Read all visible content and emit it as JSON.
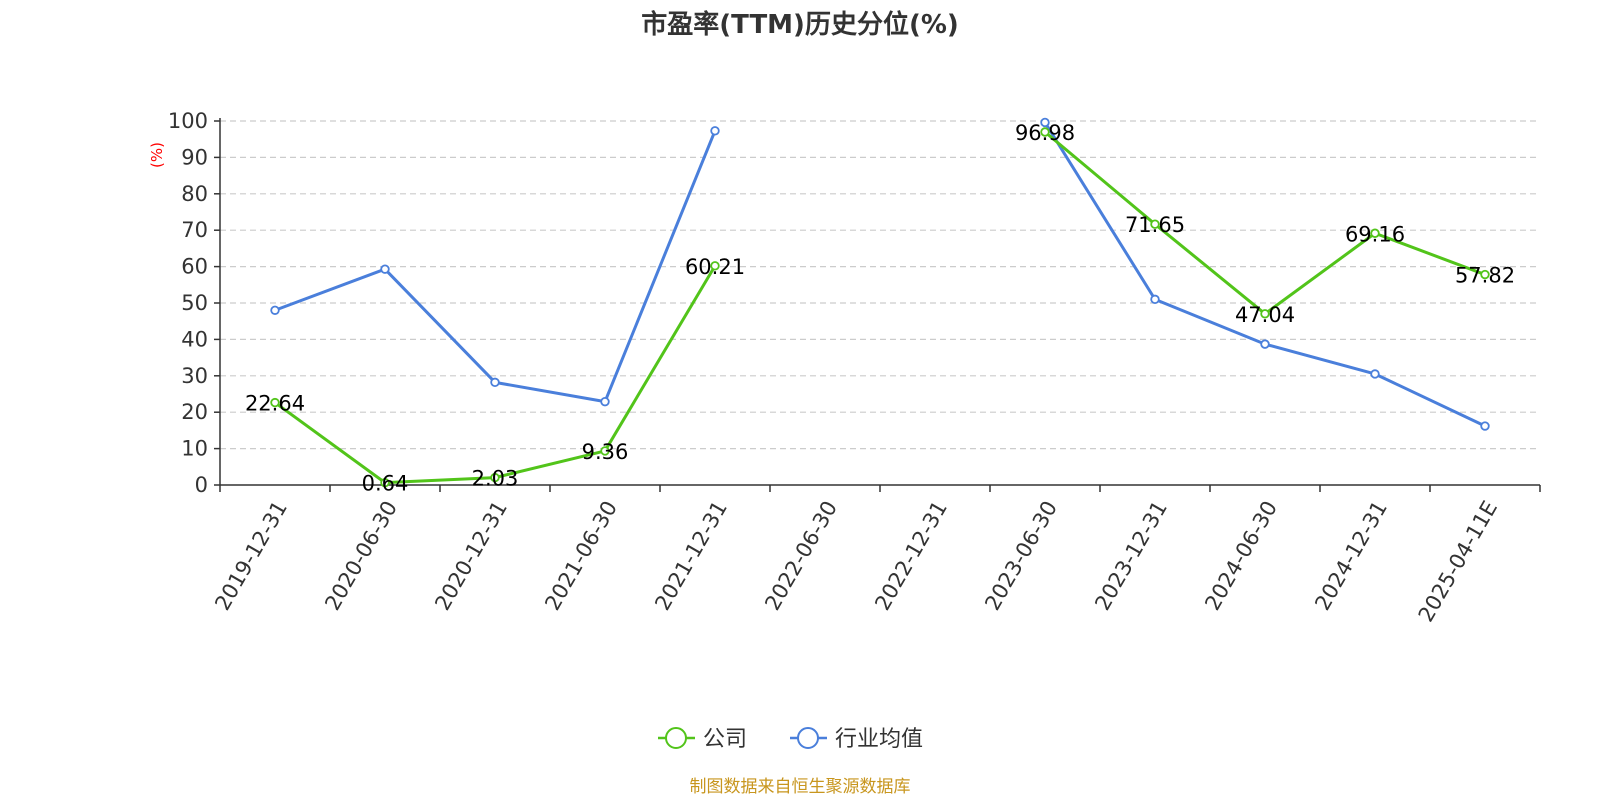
{
  "chart_data": {
    "type": "line",
    "title": "市盈率(TTM)历史分位(%)",
    "ylabel": "(%)",
    "ylim": [
      0,
      100
    ],
    "yticks": [
      0,
      10,
      20,
      30,
      40,
      50,
      60,
      70,
      80,
      90,
      100
    ],
    "grid": true,
    "legend_position": "bottom",
    "categories": [
      "2019-12-31",
      "2020-06-30",
      "2020-12-31",
      "2021-06-30",
      "2021-12-31",
      "2022-06-30",
      "2022-12-31",
      "2023-06-30",
      "2023-12-31",
      "2024-06-30",
      "2024-12-31",
      "2025-04-11E"
    ],
    "series": [
      {
        "name": "公司",
        "color": "#52c41a",
        "values": [
          22.64,
          0.64,
          2.03,
          9.36,
          60.21,
          null,
          null,
          96.98,
          71.65,
          47.04,
          69.16,
          57.82
        ],
        "labels": [
          "22.64",
          "0.64",
          "2.03",
          "9.36",
          "60.21",
          null,
          null,
          "96.98",
          "71.65",
          "47.04",
          "69.16",
          "57.82"
        ]
      },
      {
        "name": "行业均值",
        "color": "#4a7fdb",
        "values": [
          48.0,
          59.3,
          28.2,
          22.9,
          97.3,
          null,
          null,
          99.6,
          51.0,
          38.7,
          30.5,
          16.2
        ]
      }
    ]
  },
  "source": "制图数据来自恒生聚源数据库"
}
